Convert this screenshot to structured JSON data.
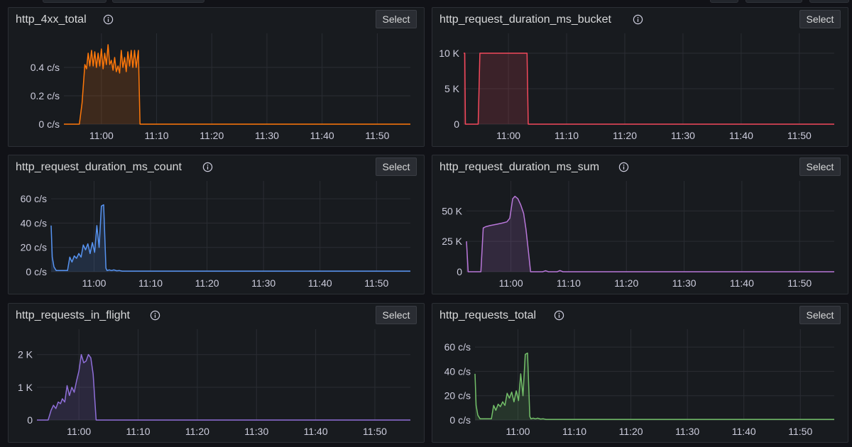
{
  "panels": [
    {
      "id": "p0",
      "title": "http_4xx_total",
      "select_label": "Select",
      "info_icon": "info-circle-icon",
      "chart_data": {
        "type": "area",
        "title": "http_4xx_total",
        "color": "#ff780a",
        "y_unit": "c/s",
        "ylim": [
          0,
          0.6
        ],
        "yticks": [
          {
            "v": 0,
            "label": "0 c/s"
          },
          {
            "v": 0.2,
            "label": "0.2 c/s"
          },
          {
            "v": 0.4,
            "label": "0.4 c/s"
          }
        ],
        "xlim": [
          53.2,
          116
        ],
        "xticks": [
          {
            "v": 60,
            "label": "11:00"
          },
          {
            "v": 70,
            "label": "11:10"
          },
          {
            "v": 80,
            "label": "11:20"
          },
          {
            "v": 90,
            "label": "11:30"
          },
          {
            "v": 100,
            "label": "11:40"
          },
          {
            "v": 110,
            "label": "11:50"
          }
        ],
        "x": [
          53.2,
          56,
          56.5,
          57,
          57.3,
          57.6,
          57.9,
          58.2,
          58.5,
          58.8,
          59.1,
          59.4,
          59.7,
          60,
          60.3,
          60.6,
          60.9,
          61.2,
          61.5,
          61.8,
          62.1,
          62.4,
          62.7,
          63,
          63.3,
          63.6,
          63.9,
          64.2,
          64.5,
          64.8,
          65.1,
          65.4,
          65.7,
          66,
          66.3,
          66.7,
          67,
          116
        ],
        "y": [
          0,
          0,
          0.15,
          0.42,
          0.39,
          0.5,
          0.41,
          0.52,
          0.41,
          0.51,
          0.4,
          0.5,
          0.41,
          0.53,
          0.39,
          0.5,
          0.42,
          0.56,
          0.42,
          0.45,
          0.38,
          0.47,
          0.37,
          0.41,
          0.36,
          0.52,
          0.4,
          0.47,
          0.37,
          0.51,
          0.41,
          0.52,
          0.4,
          0.52,
          0.4,
          0.52,
          0,
          0
        ]
      }
    },
    {
      "id": "p1",
      "title": "http_request_duration_ms_bucket",
      "select_label": "Select",
      "info_icon": "info-circle-icon",
      "chart_data": {
        "type": "area",
        "title": "http_request_duration_ms_bucket",
        "color": "#f2495c",
        "y_unit": "",
        "ylim": [
          0,
          12000
        ],
        "yticks": [
          {
            "v": 0,
            "label": "0"
          },
          {
            "v": 5000,
            "label": "5 K"
          },
          {
            "v": 10000,
            "label": "10 K"
          }
        ],
        "xlim": [
          52.3,
          116
        ],
        "xticks": [
          {
            "v": 60,
            "label": "11:00"
          },
          {
            "v": 70,
            "label": "11:10"
          },
          {
            "v": 80,
            "label": "11:20"
          },
          {
            "v": 90,
            "label": "11:30"
          },
          {
            "v": 100,
            "label": "11:40"
          },
          {
            "v": 110,
            "label": "11:50"
          }
        ],
        "x": [
          52.3,
          52.5,
          52.6,
          54.8,
          55.1,
          55.3,
          63.2,
          63.4,
          116
        ],
        "y": [
          10000,
          10000,
          0,
          0,
          10000,
          10000,
          10000,
          0,
          0
        ]
      }
    },
    {
      "id": "p2",
      "title": "http_request_duration_ms_count",
      "select_label": "Select",
      "info_icon": "info-circle-icon",
      "chart_data": {
        "type": "area",
        "title": "http_request_duration_ms_count",
        "color": "#5794f2",
        "y_unit": "c/s",
        "ylim": [
          0,
          70
        ],
        "yticks": [
          {
            "v": 0,
            "label": "0 c/s"
          },
          {
            "v": 20,
            "label": "20 c/s"
          },
          {
            "v": 40,
            "label": "40 c/s"
          },
          {
            "v": 60,
            "label": "60 c/s"
          }
        ],
        "xlim": [
          52.4,
          116
        ],
        "xticks": [
          {
            "v": 60,
            "label": "11:00"
          },
          {
            "v": 70,
            "label": "11:10"
          },
          {
            "v": 80,
            "label": "11:20"
          },
          {
            "v": 90,
            "label": "11:30"
          },
          {
            "v": 100,
            "label": "11:40"
          },
          {
            "v": 110,
            "label": "11:50"
          }
        ],
        "x": [
          52.4,
          52.6,
          52.9,
          53.3,
          55.3,
          55.7,
          56.1,
          56.5,
          56.9,
          57.3,
          57.7,
          58.1,
          58.5,
          58.9,
          59.3,
          59.7,
          60.1,
          60.5,
          60.9,
          61.3,
          61.7,
          62.1,
          62.3,
          62.7,
          63.1,
          63.5,
          64,
          64.5,
          65,
          116
        ],
        "y": [
          38,
          12,
          4,
          1,
          1,
          12,
          8,
          13,
          11,
          15,
          12,
          22,
          18,
          23,
          15,
          24,
          16,
          38,
          20,
          54,
          55,
          3,
          1,
          1.5,
          1,
          1.5,
          0.8,
          1,
          0.5,
          0.5
        ]
      }
    },
    {
      "id": "p3",
      "title": "http_request_duration_ms_sum",
      "select_label": "Select",
      "info_icon": "info-circle-icon",
      "chart_data": {
        "type": "area",
        "title": "http_request_duration_ms_sum",
        "color": "#b877d9",
        "y_unit": "",
        "ylim": [
          0,
          70000
        ],
        "yticks": [
          {
            "v": 0,
            "label": "0"
          },
          {
            "v": 25000,
            "label": "25 K"
          },
          {
            "v": 50000,
            "label": "50 K"
          }
        ],
        "xlim": [
          52.3,
          116
        ],
        "xticks": [
          {
            "v": 60,
            "label": "11:00"
          },
          {
            "v": 70,
            "label": "11:10"
          },
          {
            "v": 80,
            "label": "11:20"
          },
          {
            "v": 90,
            "label": "11:30"
          },
          {
            "v": 100,
            "label": "11:40"
          },
          {
            "v": 110,
            "label": "11:50"
          }
        ],
        "x": [
          52.3,
          52.6,
          54.8,
          55.2,
          55.6,
          56.4,
          57.5,
          58.5,
          59.3,
          59.8,
          60.3,
          60.7,
          61.2,
          61.7,
          62.2,
          62.6,
          63,
          63.4,
          65.5,
          66,
          66.5,
          68,
          68.5,
          69,
          116
        ],
        "y": [
          25000,
          0,
          0,
          36000,
          37000,
          38000,
          39000,
          40000,
          41000,
          44000,
          60000,
          62000,
          60000,
          55000,
          48000,
          35000,
          18000,
          0,
          0,
          800,
          0,
          0,
          1000,
          0,
          0
        ]
      }
    },
    {
      "id": "p4",
      "title": "http_requests_in_flight",
      "select_label": "Select",
      "info_icon": "info-circle-icon",
      "chart_data": {
        "type": "area",
        "title": "http_requests_in_flight",
        "color": "#8f6fd9",
        "y_unit": "",
        "ylim": [
          0,
          2600
        ],
        "yticks": [
          {
            "v": 0,
            "label": "0"
          },
          {
            "v": 1000,
            "label": "1 K"
          },
          {
            "v": 2000,
            "label": "2 K"
          }
        ],
        "xlim": [
          52.9,
          116
        ],
        "xticks": [
          {
            "v": 60,
            "label": "11:00"
          },
          {
            "v": 70,
            "label": "11:10"
          },
          {
            "v": 80,
            "label": "11:20"
          },
          {
            "v": 90,
            "label": "11:30"
          },
          {
            "v": 100,
            "label": "11:40"
          },
          {
            "v": 110,
            "label": "11:50"
          }
        ],
        "x": [
          52.9,
          54.8,
          55.3,
          55.7,
          56.1,
          56.5,
          56.9,
          57.2,
          57.6,
          58,
          58.4,
          58.8,
          59.2,
          59.6,
          60,
          60.4,
          60.8,
          61.2,
          61.6,
          62,
          62.4,
          62.9,
          116
        ],
        "y": [
          0,
          0,
          300,
          450,
          350,
          550,
          500,
          650,
          550,
          1050,
          750,
          1000,
          850,
          1200,
          1500,
          2000,
          1750,
          1800,
          2000,
          1900,
          1400,
          0,
          0
        ]
      }
    },
    {
      "id": "p5",
      "title": "http_requests_total",
      "select_label": "Select",
      "info_icon": "info-circle-icon",
      "chart_data": {
        "type": "area",
        "title": "http_requests_total",
        "color": "#73bf69",
        "y_unit": "c/s",
        "ylim": [
          0,
          70
        ],
        "yticks": [
          {
            "v": 0,
            "label": "0 c/s"
          },
          {
            "v": 20,
            "label": "20 c/s"
          },
          {
            "v": 40,
            "label": "40 c/s"
          },
          {
            "v": 60,
            "label": "60 c/s"
          }
        ],
        "xlim": [
          52.4,
          116
        ],
        "xticks": [
          {
            "v": 60,
            "label": "11:00"
          },
          {
            "v": 70,
            "label": "11:10"
          },
          {
            "v": 80,
            "label": "11:20"
          },
          {
            "v": 90,
            "label": "11:30"
          },
          {
            "v": 100,
            "label": "11:40"
          },
          {
            "v": 110,
            "label": "11:50"
          }
        ],
        "x": [
          52.4,
          52.6,
          52.9,
          53.3,
          55.3,
          55.7,
          56.1,
          56.5,
          56.9,
          57.3,
          57.7,
          58.1,
          58.5,
          58.9,
          59.3,
          59.7,
          60.1,
          60.5,
          60.9,
          61.3,
          61.7,
          62.1,
          62.3,
          62.7,
          63.1,
          63.5,
          64,
          64.5,
          65,
          116
        ],
        "y": [
          38,
          12,
          4,
          1,
          1,
          12,
          8,
          13,
          11,
          15,
          12,
          22,
          18,
          23,
          15,
          24,
          16,
          38,
          20,
          54,
          55,
          3,
          1,
          1.5,
          1,
          1.5,
          0.8,
          1,
          0.5,
          0.5
        ]
      }
    }
  ]
}
